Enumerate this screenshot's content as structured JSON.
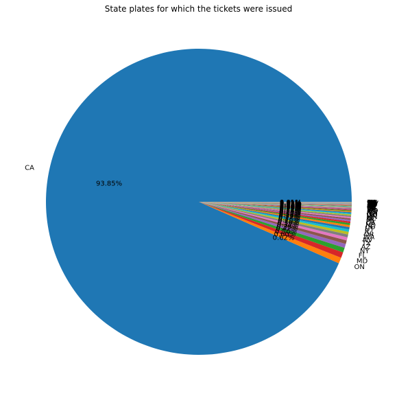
{
  "chart_data": {
    "type": "pie",
    "title": "State plates for which the tickets were issued",
    "slices": [
      {
        "label": "CA",
        "value": 93.85,
        "pct_text": "93.85%",
        "color": "#1f77b4"
      },
      {
        "label": "ON",
        "value": 0.62,
        "pct_text": "0.62%",
        "color": "#ff7f0e"
      },
      {
        "label": "MD",
        "value": 0.6,
        "pct_text": "0.60%",
        "color": "#d62728"
      },
      {
        "label": "FL",
        "value": 0.5,
        "pct_text": "0.50%",
        "color": "#2ca02c"
      },
      {
        "label": "NY",
        "value": 0.42,
        "pct_text": "0.42%",
        "color": "#9467bd"
      },
      {
        "label": "AZ",
        "value": 0.38,
        "pct_text": "0.38%",
        "color": "#8c564b"
      },
      {
        "label": "TX",
        "value": 0.34,
        "pct_text": "0.34%",
        "color": "#e377c2"
      },
      {
        "label": "NV",
        "value": 0.3,
        "pct_text": "0.30%",
        "color": "#7f7f7f"
      },
      {
        "label": "WA",
        "value": 0.28,
        "pct_text": "0.28%",
        "color": "#bcbd22"
      },
      {
        "label": "OR",
        "value": 0.26,
        "pct_text": "0.26%",
        "color": "#17becf"
      },
      {
        "label": "IL",
        "value": 0.24,
        "pct_text": "0.24%",
        "color": "#1f77b4"
      },
      {
        "label": "UT",
        "value": 0.22,
        "pct_text": "0.22%",
        "color": "#ff7f0e"
      },
      {
        "label": "CO",
        "value": 0.2,
        "pct_text": "0.20%",
        "color": "#2ca02c"
      },
      {
        "label": "NJ",
        "value": 0.18,
        "pct_text": "0.18%",
        "color": "#d62728"
      },
      {
        "label": "GA",
        "value": 0.17,
        "pct_text": "0.17%",
        "color": "#9467bd"
      },
      {
        "label": "PA",
        "value": 0.16,
        "pct_text": "0.16%",
        "color": "#8c564b"
      },
      {
        "label": "MI",
        "value": 0.15,
        "pct_text": "0.15%",
        "color": "#e377c2"
      },
      {
        "label": "NC",
        "value": 0.14,
        "pct_text": "0.14%",
        "color": "#7f7f7f"
      },
      {
        "label": "MN",
        "value": 0.13,
        "pct_text": "0.13%",
        "color": "#bcbd22"
      },
      {
        "label": "VA",
        "value": 0.12,
        "pct_text": "0.12%",
        "color": "#17becf"
      },
      {
        "label": "OH",
        "value": 0.11,
        "pct_text": "0.11%",
        "color": "#1f77b4"
      },
      {
        "label": "MA",
        "value": 0.1,
        "pct_text": "0.10%",
        "color": "#ff7f0e"
      },
      {
        "label": "NM",
        "value": 0.09,
        "pct_text": "0.09%",
        "color": "#2ca02c"
      },
      {
        "label": "ID",
        "value": 0.08,
        "pct_text": "0.08%",
        "color": "#d62728"
      },
      {
        "label": "MO",
        "value": 0.07,
        "pct_text": "0.07%",
        "color": "#9467bd"
      },
      {
        "label": "WI",
        "value": 0.06,
        "pct_text": "0.06%",
        "color": "#8c564b"
      },
      {
        "label": "HI",
        "value": 0.06,
        "pct_text": "0.06%",
        "color": "#e377c2"
      },
      {
        "label": "TN",
        "value": 0.05,
        "pct_text": "0.05%",
        "color": "#7f7f7f"
      },
      {
        "label": "IN",
        "value": 0.05,
        "pct_text": "0.05%",
        "color": "#bcbd22"
      },
      {
        "label": "SC",
        "value": 0.04,
        "pct_text": "0.04%",
        "color": "#17becf"
      },
      {
        "label": "OK",
        "value": 0.04,
        "pct_text": "0.04%",
        "color": "#1f77b4"
      },
      {
        "label": "LA",
        "value": 0.04,
        "pct_text": "0.04%",
        "color": "#ff7f0e"
      },
      {
        "label": "KS",
        "value": 0.03,
        "pct_text": "0.03%",
        "color": "#2ca02c"
      },
      {
        "label": "AL",
        "value": 0.03,
        "pct_text": "0.03%",
        "color": "#d62728"
      },
      {
        "label": "MT",
        "value": 0.03,
        "pct_text": "0.03%",
        "color": "#9467bd"
      },
      {
        "label": "IA",
        "value": 0.03,
        "pct_text": "0.03%",
        "color": "#8c564b"
      },
      {
        "label": "CT",
        "value": 0.02,
        "pct_text": "0.02%",
        "color": "#e377c2"
      },
      {
        "label": "KY",
        "value": 0.02,
        "pct_text": "0.02%",
        "color": "#7f7f7f"
      },
      {
        "label": "AK",
        "value": 0.02,
        "pct_text": "0.02%",
        "color": "#bcbd22"
      },
      {
        "label": "NE",
        "value": 0.02,
        "pct_text": "0.02%",
        "color": "#17becf"
      },
      {
        "label": "AR",
        "value": 0.02,
        "pct_text": "0.02%",
        "color": "#1f77b4"
      },
      {
        "label": "MS",
        "value": 0.01,
        "pct_text": "0.01%",
        "color": "#ff7f0e"
      },
      {
        "label": "WY",
        "value": 0.01,
        "pct_text": "0.01%",
        "color": "#2ca02c"
      },
      {
        "label": "SD",
        "value": 0.01,
        "pct_text": "0.01%",
        "color": "#d62728"
      },
      {
        "label": "ND",
        "value": 0.01,
        "pct_text": "0.01%",
        "color": "#9467bd"
      },
      {
        "label": "ME",
        "value": 0.01,
        "pct_text": "0.01%",
        "color": "#8c564b"
      },
      {
        "label": "NH",
        "value": 0.01,
        "pct_text": "0.01%",
        "color": "#e377c2"
      },
      {
        "label": "VT",
        "value": 0.01,
        "pct_text": "0.01%",
        "color": "#7f7f7f"
      },
      {
        "label": "RI",
        "value": 0.01,
        "pct_text": "0.01%",
        "color": "#bcbd22"
      },
      {
        "label": "DE",
        "value": 0.01,
        "pct_text": "0.01%",
        "color": "#17becf"
      },
      {
        "label": "DC",
        "value": 0.01,
        "pct_text": "0.01%",
        "color": "#1f77b4"
      },
      {
        "label": "WV",
        "value": 0.01,
        "pct_text": "0.01%",
        "color": "#ff7f0e"
      },
      {
        "label": "PR",
        "value": 0.01,
        "pct_text": "0.01%",
        "color": "#2ca02c"
      },
      {
        "label": "BC",
        "value": 0.01,
        "pct_text": "0.01%",
        "color": "#d62728"
      },
      {
        "label": "AB",
        "value": 0.01,
        "pct_text": "0.01%",
        "color": "#9467bd"
      },
      {
        "label": "QC",
        "value": 0.01,
        "pct_text": "0.01%",
        "color": "#8c564b"
      },
      {
        "label": "MX",
        "value": 0.01,
        "pct_text": "0.01%",
        "color": "#e377c2"
      },
      {
        "label": "GV",
        "value": 0.01,
        "pct_text": "0.01%",
        "color": "#7f7f7f"
      },
      {
        "label": "US",
        "value": 0.01,
        "pct_text": "0.01%",
        "color": "#bcbd22"
      },
      {
        "label": "FN",
        "value": 0.01,
        "pct_text": "0.01%",
        "color": "#17becf"
      }
    ],
    "start_angle_deg": 0,
    "direction": "counterclockwise"
  }
}
